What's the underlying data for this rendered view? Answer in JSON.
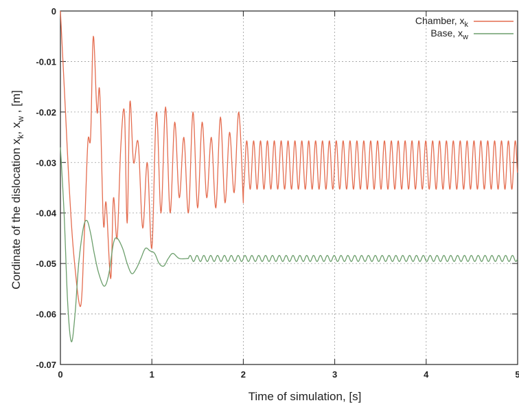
{
  "chart_data": {
    "type": "line",
    "xlabel": "Time of  simulation,  [s]",
    "ylabel": {
      "prefix": "Cordinate of  the dislocation   x",
      "sub1": "k",
      "mid": ",   x",
      "sub2": "w",
      "suffix": " ,   [m]"
    },
    "xlim": [
      0,
      5
    ],
    "ylim": [
      -0.07,
      0
    ],
    "x_ticks": [
      "0",
      "1",
      "2",
      "3",
      "4",
      "5"
    ],
    "y_ticks": [
      "0",
      "-0.01",
      "-0.02",
      "-0.03",
      "-0.04",
      "-0.05",
      "-0.06",
      "-0.07"
    ],
    "grid": true,
    "legend_position": "top-right",
    "series": [
      {
        "name": "Chamber, x",
        "sub": "k",
        "color": "#e46c4f",
        "points": [
          [
            0,
            0
          ],
          [
            0.05,
            -0.018
          ],
          [
            0.1,
            -0.036
          ],
          [
            0.15,
            -0.049
          ],
          [
            0.22,
            -0.0585
          ],
          [
            0.26,
            -0.045
          ],
          [
            0.3,
            -0.026
          ],
          [
            0.33,
            -0.025
          ],
          [
            0.36,
            -0.005
          ],
          [
            0.4,
            -0.02
          ],
          [
            0.43,
            -0.016
          ],
          [
            0.47,
            -0.042
          ],
          [
            0.5,
            -0.038
          ],
          [
            0.55,
            -0.053
          ],
          [
            0.58,
            -0.037
          ],
          [
            0.62,
            -0.045
          ],
          [
            0.66,
            -0.027
          ],
          [
            0.7,
            -0.02
          ],
          [
            0.73,
            -0.042
          ],
          [
            0.76,
            -0.018
          ],
          [
            0.8,
            -0.03
          ],
          [
            0.85,
            -0.026
          ],
          [
            0.9,
            -0.043
          ],
          [
            0.95,
            -0.03
          ],
          [
            1.0,
            -0.047
          ],
          [
            1.05,
            -0.02
          ],
          [
            1.1,
            -0.04
          ],
          [
            1.15,
            -0.019
          ],
          [
            1.2,
            -0.04
          ],
          [
            1.25,
            -0.022
          ],
          [
            1.3,
            -0.037
          ],
          [
            1.35,
            -0.025
          ],
          [
            1.4,
            -0.04
          ],
          [
            1.45,
            -0.02
          ],
          [
            1.5,
            -0.039
          ],
          [
            1.55,
            -0.022
          ],
          [
            1.6,
            -0.037
          ],
          [
            1.65,
            -0.025
          ],
          [
            1.7,
            -0.039
          ],
          [
            1.75,
            -0.021
          ],
          [
            1.8,
            -0.038
          ],
          [
            1.85,
            -0.024
          ],
          [
            1.9,
            -0.036
          ],
          [
            1.95,
            -0.02
          ],
          [
            2.0,
            -0.038
          ]
        ],
        "oscillation": {
          "from": 2.0,
          "to": 5.0,
          "center": -0.0305,
          "amplitude": 0.0048,
          "period": 0.0753
        }
      },
      {
        "name": "Base, x",
        "sub": "w",
        "color": "#6b9e6b",
        "points": [
          [
            0,
            -0.027
          ],
          [
            0.04,
            -0.04
          ],
          [
            0.08,
            -0.058
          ],
          [
            0.12,
            -0.0655
          ],
          [
            0.16,
            -0.06
          ],
          [
            0.2,
            -0.05
          ],
          [
            0.25,
            -0.043
          ],
          [
            0.29,
            -0.0415
          ],
          [
            0.33,
            -0.044
          ],
          [
            0.37,
            -0.048
          ],
          [
            0.42,
            -0.052
          ],
          [
            0.48,
            -0.0545
          ],
          [
            0.53,
            -0.052
          ],
          [
            0.58,
            -0.046
          ],
          [
            0.62,
            -0.045
          ],
          [
            0.68,
            -0.047
          ],
          [
            0.73,
            -0.05
          ],
          [
            0.78,
            -0.052
          ],
          [
            0.83,
            -0.051
          ],
          [
            0.88,
            -0.049
          ],
          [
            0.93,
            -0.047
          ],
          [
            0.98,
            -0.0475
          ],
          [
            1.03,
            -0.048
          ],
          [
            1.08,
            -0.05
          ],
          [
            1.13,
            -0.0505
          ],
          [
            1.18,
            -0.049
          ],
          [
            1.23,
            -0.048
          ],
          [
            1.3,
            -0.049
          ],
          [
            1.4,
            -0.049
          ]
        ],
        "oscillation": {
          "from": 1.4,
          "to": 5.0,
          "center": -0.049,
          "amplitude": 0.0006,
          "period": 0.075
        }
      }
    ]
  }
}
